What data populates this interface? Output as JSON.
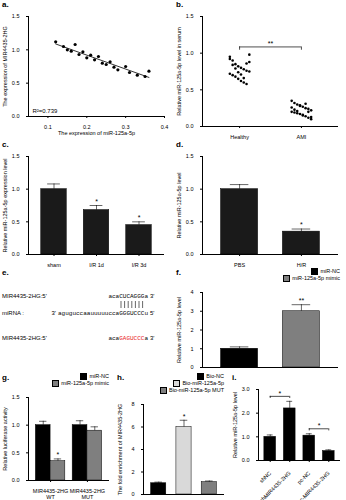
{
  "chart_data": [
    {
      "panel": "a.",
      "type": "scatter",
      "color": "#000000",
      "x": [
        0.12,
        0.14,
        0.15,
        0.16,
        0.17,
        0.18,
        0.19,
        0.2,
        0.21,
        0.22,
        0.23,
        0.24,
        0.25,
        0.26,
        0.27,
        0.28,
        0.3,
        0.31,
        0.33,
        0.35,
        0.36
      ],
      "y": [
        1.12,
        1.05,
        1.0,
        0.98,
        1.08,
        0.93,
        0.97,
        0.88,
        0.92,
        0.85,
        0.9,
        0.8,
        0.78,
        0.82,
        0.74,
        0.7,
        0.75,
        0.66,
        0.62,
        0.6,
        0.68
      ],
      "xlabel": "The expression of miR-125a-5p",
      "ylabel": "The expression of MIR4435-2HG",
      "xlim": [
        0.05,
        0.4
      ],
      "xticks": [
        0.1,
        0.2,
        0.3,
        0.4
      ],
      "ylim": [
        0,
        1.5
      ],
      "yticks": [
        {
          "value": 0,
          "label": "0.0"
        },
        0.5,
        {
          "value": 1,
          "label": "1.0"
        },
        1.5
      ],
      "annotations": [
        {
          "text": "R²=0.739"
        }
      ]
    },
    {
      "panel": "b.",
      "type": "strip",
      "color": "#000000",
      "categories": [
        "Healthy",
        "AMI"
      ],
      "values": [
        [
          0.95,
          0.9,
          0.85,
          0.82,
          0.8,
          0.78,
          0.76,
          0.75,
          0.72,
          0.7,
          0.68,
          0.65,
          0.62,
          0.6,
          0.58,
          0.88,
          0.92,
          0.84,
          0.79,
          0.74,
          0.71,
          0.66,
          0.86,
          0.98
        ],
        [
          0.35,
          0.32,
          0.3,
          0.28,
          0.27,
          0.25,
          0.24,
          0.22,
          0.2,
          0.19,
          0.18,
          0.17,
          0.15,
          0.14,
          0.12,
          0.1,
          0.26,
          0.23,
          0.21,
          0.29,
          0.16,
          0.31,
          0.2,
          0.13
        ]
      ],
      "ylabel": "Relative miR-125a-5p level in serum",
      "ylim": [
        0,
        1.5
      ],
      "yticks": [
        {
          "value": 0,
          "label": "0.0"
        },
        0.5,
        {
          "value": 1,
          "label": "1.0"
        },
        1.5
      ],
      "annotations": [
        {
          "categories": [
            "Healthy",
            "AMI"
          ],
          "text": "**"
        }
      ]
    },
    {
      "panel": "c.",
      "type": "bar",
      "color": "#1a1a1a",
      "categories": [
        "sham",
        "I/R 1d",
        "I/R 3d"
      ],
      "values": [
        1.0,
        0.68,
        0.45
      ],
      "errors": [
        0.08,
        0.07,
        0.05
      ],
      "ylabel": "Relative miR-125a-5p expression level",
      "ylim": [
        0,
        1.5
      ],
      "yticks": [
        {
          "value": 0,
          "label": "0.0"
        },
        0.5,
        {
          "value": 1,
          "label": "1.0"
        },
        1.5
      ],
      "annotations": [
        {
          "category": "I/R 1d",
          "text": "*"
        },
        {
          "category": "I/R 3d",
          "text": "*"
        }
      ]
    },
    {
      "panel": "d.",
      "type": "bar",
      "color": "#1a1a1a",
      "categories": [
        "PBS",
        "H/R"
      ],
      "values": [
        1.0,
        0.35
      ],
      "errors": [
        0.07,
        0.04
      ],
      "ylabel": "Relative miR-125a-5p level",
      "ylim": [
        0,
        1.5
      ],
      "yticks": [
        {
          "value": 0,
          "label": "0.0"
        },
        0.5,
        {
          "value": 1,
          "label": "1.0"
        },
        1.5
      ],
      "annotations": [
        {
          "category": "H/R",
          "text": "*"
        }
      ]
    },
    {
      "panel": "e.",
      "type": "diagram",
      "rows": [
        {
          "label": "MIR4435-2HG:5'",
          "segments": [
            {
              "text": "acaCUCAGGGa"
            }
          ],
          "end": "3'"
        },
        {
          "label": "miRNA :",
          "start": "3'",
          "segments": [
            {
              "text": "aguguccaauuuuuccaGGGUCCCu"
            }
          ],
          "end": "5'"
        },
        {
          "label": "MIR4435-2HG:5'",
          "segments": [
            {
              "text": "aca"
            },
            {
              "text": "GAGUCCC",
              "color": "#e8201c"
            },
            {
              "text": "a"
            }
          ],
          "end": "3'"
        }
      ]
    },
    {
      "panel": "f.",
      "type": "bar",
      "colors": [
        "#000000",
        "#7f7f7f"
      ],
      "categories": [
        "miR-NC",
        "miR-125a-5p mimic"
      ],
      "values": [
        1.0,
        3.0
      ],
      "errors": [
        0.1,
        0.35
      ],
      "legend": "top-right",
      "tick_labels": "y",
      "ylabel": "Relative miR-125a-5p level",
      "ylim": [
        0,
        4
      ],
      "yticks": [
        0,
        1,
        2,
        3,
        4
      ],
      "annotations": [
        {
          "category": "miR-125a-5p mimic",
          "text": "**"
        }
      ]
    },
    {
      "panel": "g.",
      "type": "bar",
      "categories": [
        "MIR4435-2HG WT",
        "MIR4435-2HG MUT"
      ],
      "series": [
        {
          "name": "miR-NC",
          "color": "#000000",
          "values": [
            1.0,
            1.0
          ],
          "errors": [
            0.07,
            0.08
          ]
        },
        {
          "name": "miR-125a-5p mimic",
          "color": "#7f7f7f",
          "values": [
            0.35,
            0.9
          ],
          "errors": [
            0.04,
            0.07
          ]
        }
      ],
      "legend": "top-right",
      "ylabel": "Relative luciferase activity",
      "ylim": [
        0,
        1.5
      ],
      "yticks": [
        {
          "value": 0,
          "label": "0.0"
        },
        0.5,
        {
          "value": 1,
          "label": "1.0"
        },
        1.5
      ],
      "annotations": [
        {
          "category": "MIR4435-2HG WT",
          "series": "miR-125a-5p mimic",
          "text": "*"
        }
      ]
    },
    {
      "panel": "h.",
      "type": "bar",
      "colors": [
        "#000000",
        "#d9d9d9",
        "#7f7f7f"
      ],
      "categories": [
        "Bio-NC",
        "Bio-miR-125a-5p",
        "Bio-miR-125a-5p MUT"
      ],
      "values": [
        1.0,
        6.0,
        1.1
      ],
      "errors": [
        0.1,
        0.6,
        0.1
      ],
      "legend": "top-right",
      "tick_labels": "y",
      "ylabel": "The fold enrichment of MIR4435-2HG",
      "ylim": [
        0,
        8
      ],
      "yticks": [
        0,
        2,
        4,
        6,
        8
      ],
      "annotations": [
        {
          "category": "Bio-miR-125a-5p",
          "text": "*"
        }
      ]
    },
    {
      "panel": "i.",
      "type": "bar",
      "color": "#000000",
      "categories": [
        "shNC",
        "shMIR4435-2HG",
        "pc-NC",
        "pc-MIR4435-2HG"
      ],
      "values": [
        1.0,
        2.2,
        1.05,
        0.4
      ],
      "errors": [
        0.08,
        0.3,
        0.08,
        0.05
      ],
      "ylabel": "Relative miR-125a-5p level",
      "ylim": [
        0,
        3
      ],
      "yticks": [
        {
          "value": 0,
          "label": "0.0"
        },
        {
          "value": 1,
          "label": "1.0"
        },
        {
          "value": 2,
          "label": "2.0"
        },
        {
          "value": 3,
          "label": "3.0"
        }
      ],
      "annotations": [
        {
          "categories": [
            "shNC",
            "shMIR4435-2HG"
          ],
          "text": "*"
        },
        {
          "categories": [
            "pc-NC",
            "pc-MIR4435-2HG"
          ],
          "text": "*"
        }
      ]
    }
  ]
}
